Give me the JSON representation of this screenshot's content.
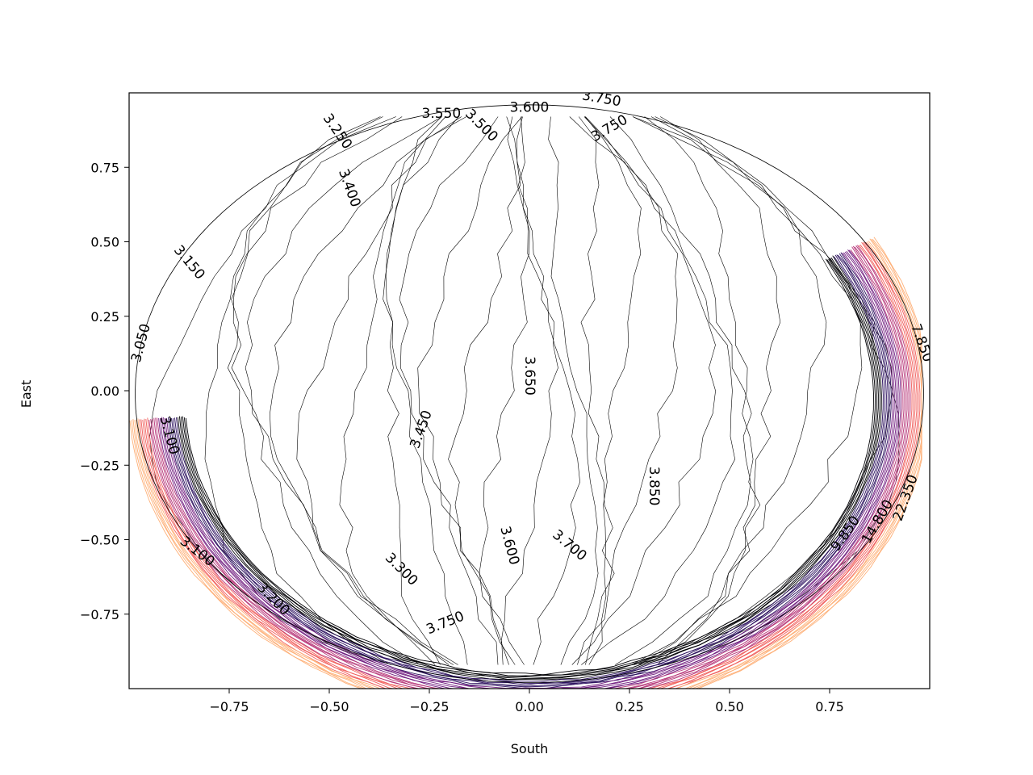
{
  "chart_data": {
    "type": "contour",
    "title": "",
    "xlabel": "South",
    "ylabel": "East",
    "xlim": [
      -1.0,
      1.0
    ],
    "ylim": [
      -1.0,
      1.0
    ],
    "x_ticks": [
      {
        "value": -0.75,
        "label": "−0.75"
      },
      {
        "value": -0.5,
        "label": "−0.50"
      },
      {
        "value": -0.25,
        "label": "−0.25"
      },
      {
        "value": 0.0,
        "label": "0.00"
      },
      {
        "value": 0.25,
        "label": "0.25"
      },
      {
        "value": 0.5,
        "label": "0.50"
      },
      {
        "value": 0.75,
        "label": "0.75"
      }
    ],
    "y_ticks": [
      {
        "value": 0.75,
        "label": "0.75"
      },
      {
        "value": 0.5,
        "label": "0.50"
      },
      {
        "value": 0.25,
        "label": "0.25"
      },
      {
        "value": 0.0,
        "label": "0.00"
      },
      {
        "value": -0.25,
        "label": "−0.25"
      },
      {
        "value": -0.5,
        "label": "−0.50"
      },
      {
        "value": -0.75,
        "label": "−0.75"
      }
    ],
    "grid": false,
    "colormap": "magma",
    "edge_colors": [
      "#000004",
      "#2c115f",
      "#721f81",
      "#b73779",
      "#f1605d",
      "#feb078"
    ],
    "domain_radius": 1.0,
    "contour_levels": {
      "start": 3.0,
      "step": 0.05
    },
    "contour_labels": [
      {
        "text": "3.250",
        "x": -0.48,
        "y": 0.87,
        "angle": 55
      },
      {
        "text": "3.400",
        "x": -0.45,
        "y": 0.68,
        "angle": 70
      },
      {
        "text": "3.550",
        "x": -0.22,
        "y": 0.93,
        "angle": 0
      },
      {
        "text": "3.500",
        "x": -0.12,
        "y": 0.89,
        "angle": 45
      },
      {
        "text": "3.600",
        "x": 0.0,
        "y": 0.95,
        "angle": 0
      },
      {
        "text": "3.750",
        "x": 0.2,
        "y": 0.88,
        "angle": -30
      },
      {
        "text": "3.750",
        "x": 0.18,
        "y": 0.98,
        "angle": 10
      },
      {
        "text": "3.150",
        "x": -0.85,
        "y": 0.43,
        "angle": 50
      },
      {
        "text": "3.050",
        "x": -0.97,
        "y": 0.16,
        "angle": -75
      },
      {
        "text": "3.100",
        "x": -0.9,
        "y": -0.15,
        "angle": 75
      },
      {
        "text": "3.100",
        "x": -0.83,
        "y": -0.54,
        "angle": 38
      },
      {
        "text": "3.200",
        "x": -0.64,
        "y": -0.7,
        "angle": 45
      },
      {
        "text": "3.300",
        "x": -0.32,
        "y": -0.6,
        "angle": 45
      },
      {
        "text": "3.450",
        "x": -0.27,
        "y": -0.13,
        "angle": -70
      },
      {
        "text": "3.650",
        "x": 0.0,
        "y": 0.05,
        "angle": 90
      },
      {
        "text": "3.600",
        "x": -0.05,
        "y": -0.52,
        "angle": 75
      },
      {
        "text": "3.700",
        "x": 0.1,
        "y": -0.52,
        "angle": 40
      },
      {
        "text": "3.750",
        "x": -0.21,
        "y": -0.78,
        "angle": -22
      },
      {
        "text": "3.850",
        "x": 0.31,
        "y": -0.32,
        "angle": 90
      },
      {
        "text": "7.850",
        "x": 0.98,
        "y": 0.16,
        "angle": 70
      },
      {
        "text": "22.350",
        "x": 0.94,
        "y": -0.36,
        "angle": -70
      },
      {
        "text": "14.800",
        "x": 0.87,
        "y": -0.44,
        "angle": -60
      },
      {
        "text": "9.850",
        "x": 0.79,
        "y": -0.48,
        "angle": -55
      }
    ]
  }
}
